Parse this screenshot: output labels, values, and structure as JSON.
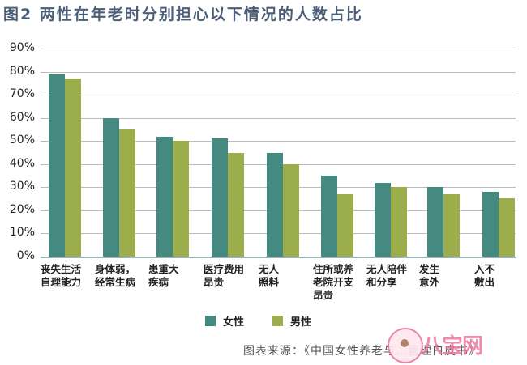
{
  "header": {
    "title": "图2 两性在年老时分别担心以下情况的人数占比"
  },
  "legend": [
    {
      "label": "女性",
      "color": "#458a80"
    },
    {
      "label": "男性",
      "color": "#9cae4c"
    }
  ],
  "footer": {
    "source": "图表来源：《中国女性养老与…管理白皮书》",
    "watermark": "八宝网"
  },
  "y_ticks": [
    "90%",
    "80%",
    "70%",
    "60%",
    "50%",
    "40%",
    "30%",
    "20%",
    "10%",
    "0%"
  ],
  "categories_display": [
    "丧失生活\n自理能力",
    "身体弱，\n经常生病",
    "患重大\n疾病",
    "医疗费用\n昂贵",
    "无人\n照料",
    "住所或养\n老院开支\n昂贵",
    "无人陪伴\n和分享",
    "发生\n意外",
    "入不\n敷出"
  ],
  "chart_data": {
    "type": "bar",
    "title": "图2 两性在年老时分别担心以下情况的人数占比",
    "xlabel": "",
    "ylabel": "",
    "ylim": [
      0,
      90
    ],
    "y_tick_labels": [
      "0%",
      "10%",
      "20%",
      "30%",
      "40%",
      "50%",
      "60%",
      "70%",
      "80%",
      "90%"
    ],
    "grid": true,
    "legend_position": "bottom",
    "categories": [
      "丧失生活自理能力",
      "身体弱，经常生病",
      "患重大疾病",
      "医疗费用昂贵",
      "无人照料",
      "住所或养老院开支昂贵",
      "无人陪伴和分享",
      "发生意外",
      "入不敷出"
    ],
    "series": [
      {
        "name": "女性",
        "color": "#458a80",
        "values": [
          79,
          60,
          52,
          51,
          45,
          35,
          32,
          30,
          28
        ]
      },
      {
        "name": "男性",
        "color": "#9cae4c",
        "values": [
          77,
          55,
          50,
          45,
          40,
          27,
          30,
          27,
          25
        ]
      }
    ],
    "source": "图表来源：《中国女性养老与…管理白皮书》"
  }
}
